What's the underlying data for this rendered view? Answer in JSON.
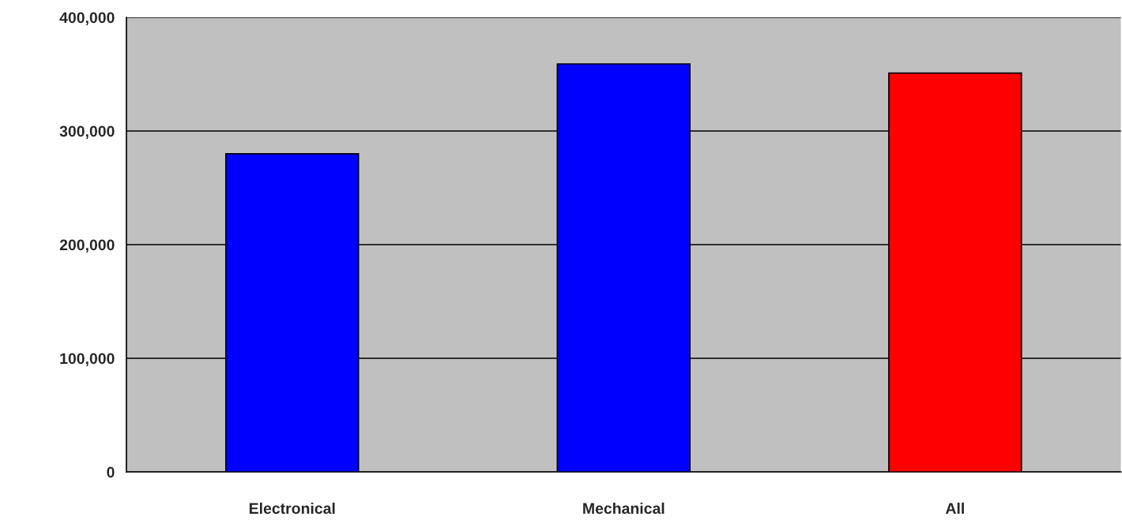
{
  "chart_data": {
    "type": "bar",
    "categories": [
      "Electronical",
      "Mechanical",
      "All"
    ],
    "values": [
      280000,
      359000,
      351000
    ],
    "colors": [
      "#0000ff",
      "#0000ff",
      "#ff0000"
    ],
    "ylim": [
      0,
      400000
    ],
    "yticks": [
      {
        "value": 0,
        "label": "0"
      },
      {
        "value": 100000,
        "label": "100,000"
      },
      {
        "value": 200000,
        "label": "200,000"
      },
      {
        "value": 300000,
        "label": "300,000"
      },
      {
        "value": 400000,
        "label": "400,000"
      }
    ],
    "grid": "y"
  }
}
